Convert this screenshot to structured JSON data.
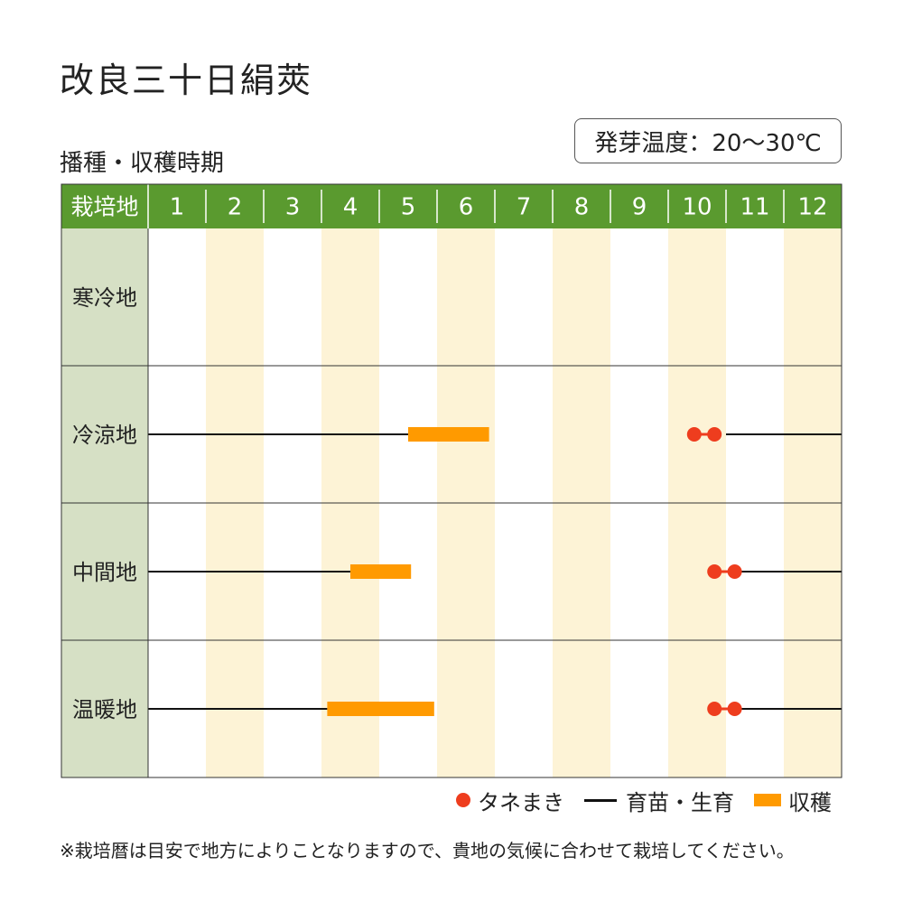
{
  "title": "改良三十日絹莢",
  "subtitle": "播種・収穫時期",
  "germination_temp": "発芽温度：20〜30℃",
  "header_label": "栽培地",
  "note": "※栽培暦は目安で地方によりことなりますので、貴地の気候に合わせて栽培してください。",
  "legend": {
    "sowing": "タネまき",
    "seedling": "育苗・生育",
    "harvest": "収穫"
  },
  "colors": {
    "header_bg": "#5a9a2f",
    "region_bg": "#d6e0c5",
    "stripe": "#fdf3d6",
    "sowing": "#ee3d1e",
    "harvest": "#ff9a00",
    "line": "#111111"
  },
  "chart_data": {
    "type": "gantt",
    "months": [
      "1",
      "2",
      "3",
      "4",
      "5",
      "6",
      "7",
      "8",
      "9",
      "10",
      "11",
      "12"
    ],
    "regions": [
      {
        "name": "寒冷地",
        "growth": [],
        "harvest": null,
        "sowing": []
      },
      {
        "name": "冷涼地",
        "growth": [
          [
            1.0,
            5.5
          ],
          [
            11.0,
            13.0
          ]
        ],
        "harvest": [
          5.5,
          6.9
        ],
        "sowing": [
          10.45,
          10.8
        ]
      },
      {
        "name": "中間地",
        "growth": [
          [
            1.0,
            4.5
          ],
          [
            11.0,
            13.0
          ]
        ],
        "harvest": [
          4.5,
          5.55
        ],
        "sowing": [
          10.8,
          11.15
        ]
      },
      {
        "name": "温暖地",
        "growth": [
          [
            1.0,
            4.1
          ],
          [
            11.0,
            13.0
          ]
        ],
        "harvest": [
          4.1,
          5.95
        ],
        "sowing": [
          10.8,
          11.15
        ]
      }
    ]
  }
}
